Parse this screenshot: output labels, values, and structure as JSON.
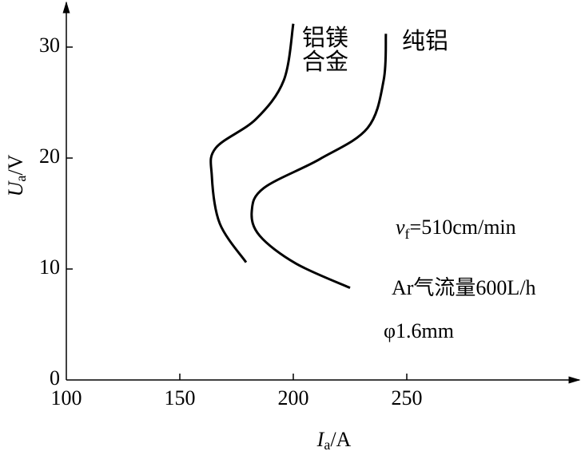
{
  "chart_data": {
    "type": "line",
    "xlabel": {
      "main": "I",
      "sub": "a",
      "unit": "/A"
    },
    "ylabel": {
      "main": "U",
      "sub": "a",
      "unit": "/V"
    },
    "xlim": [
      100,
      322
    ],
    "ylim": [
      0,
      34
    ],
    "xticks": [
      100,
      150,
      200,
      250
    ],
    "yticks": [
      0,
      10,
      20,
      30
    ],
    "series": [
      {
        "name": "铝镁合金",
        "color": "#000000",
        "x": [
          200,
          195.8,
          183.5,
          165.8,
          164.1,
          167.6,
          179.2
        ],
        "values": [
          32.1,
          27,
          23.5,
          20.9,
          18.4,
          14.1,
          10.6
        ]
      },
      {
        "name": "纯铝",
        "color": "#000000",
        "x": [
          240.8,
          239.8,
          232.7,
          211.6,
          187,
          181.7,
          185.2,
          201.1,
          225
        ],
        "values": [
          31.2,
          27,
          22.7,
          19.9,
          17.3,
          15.2,
          13,
          10.5,
          8.3
        ]
      }
    ],
    "annotations": {
      "speed": {
        "main": "v",
        "sub": "f",
        "rest": "=510cm/min"
      },
      "gas": "Ar气流量600L/h",
      "wire": "φ1.6mm"
    }
  }
}
